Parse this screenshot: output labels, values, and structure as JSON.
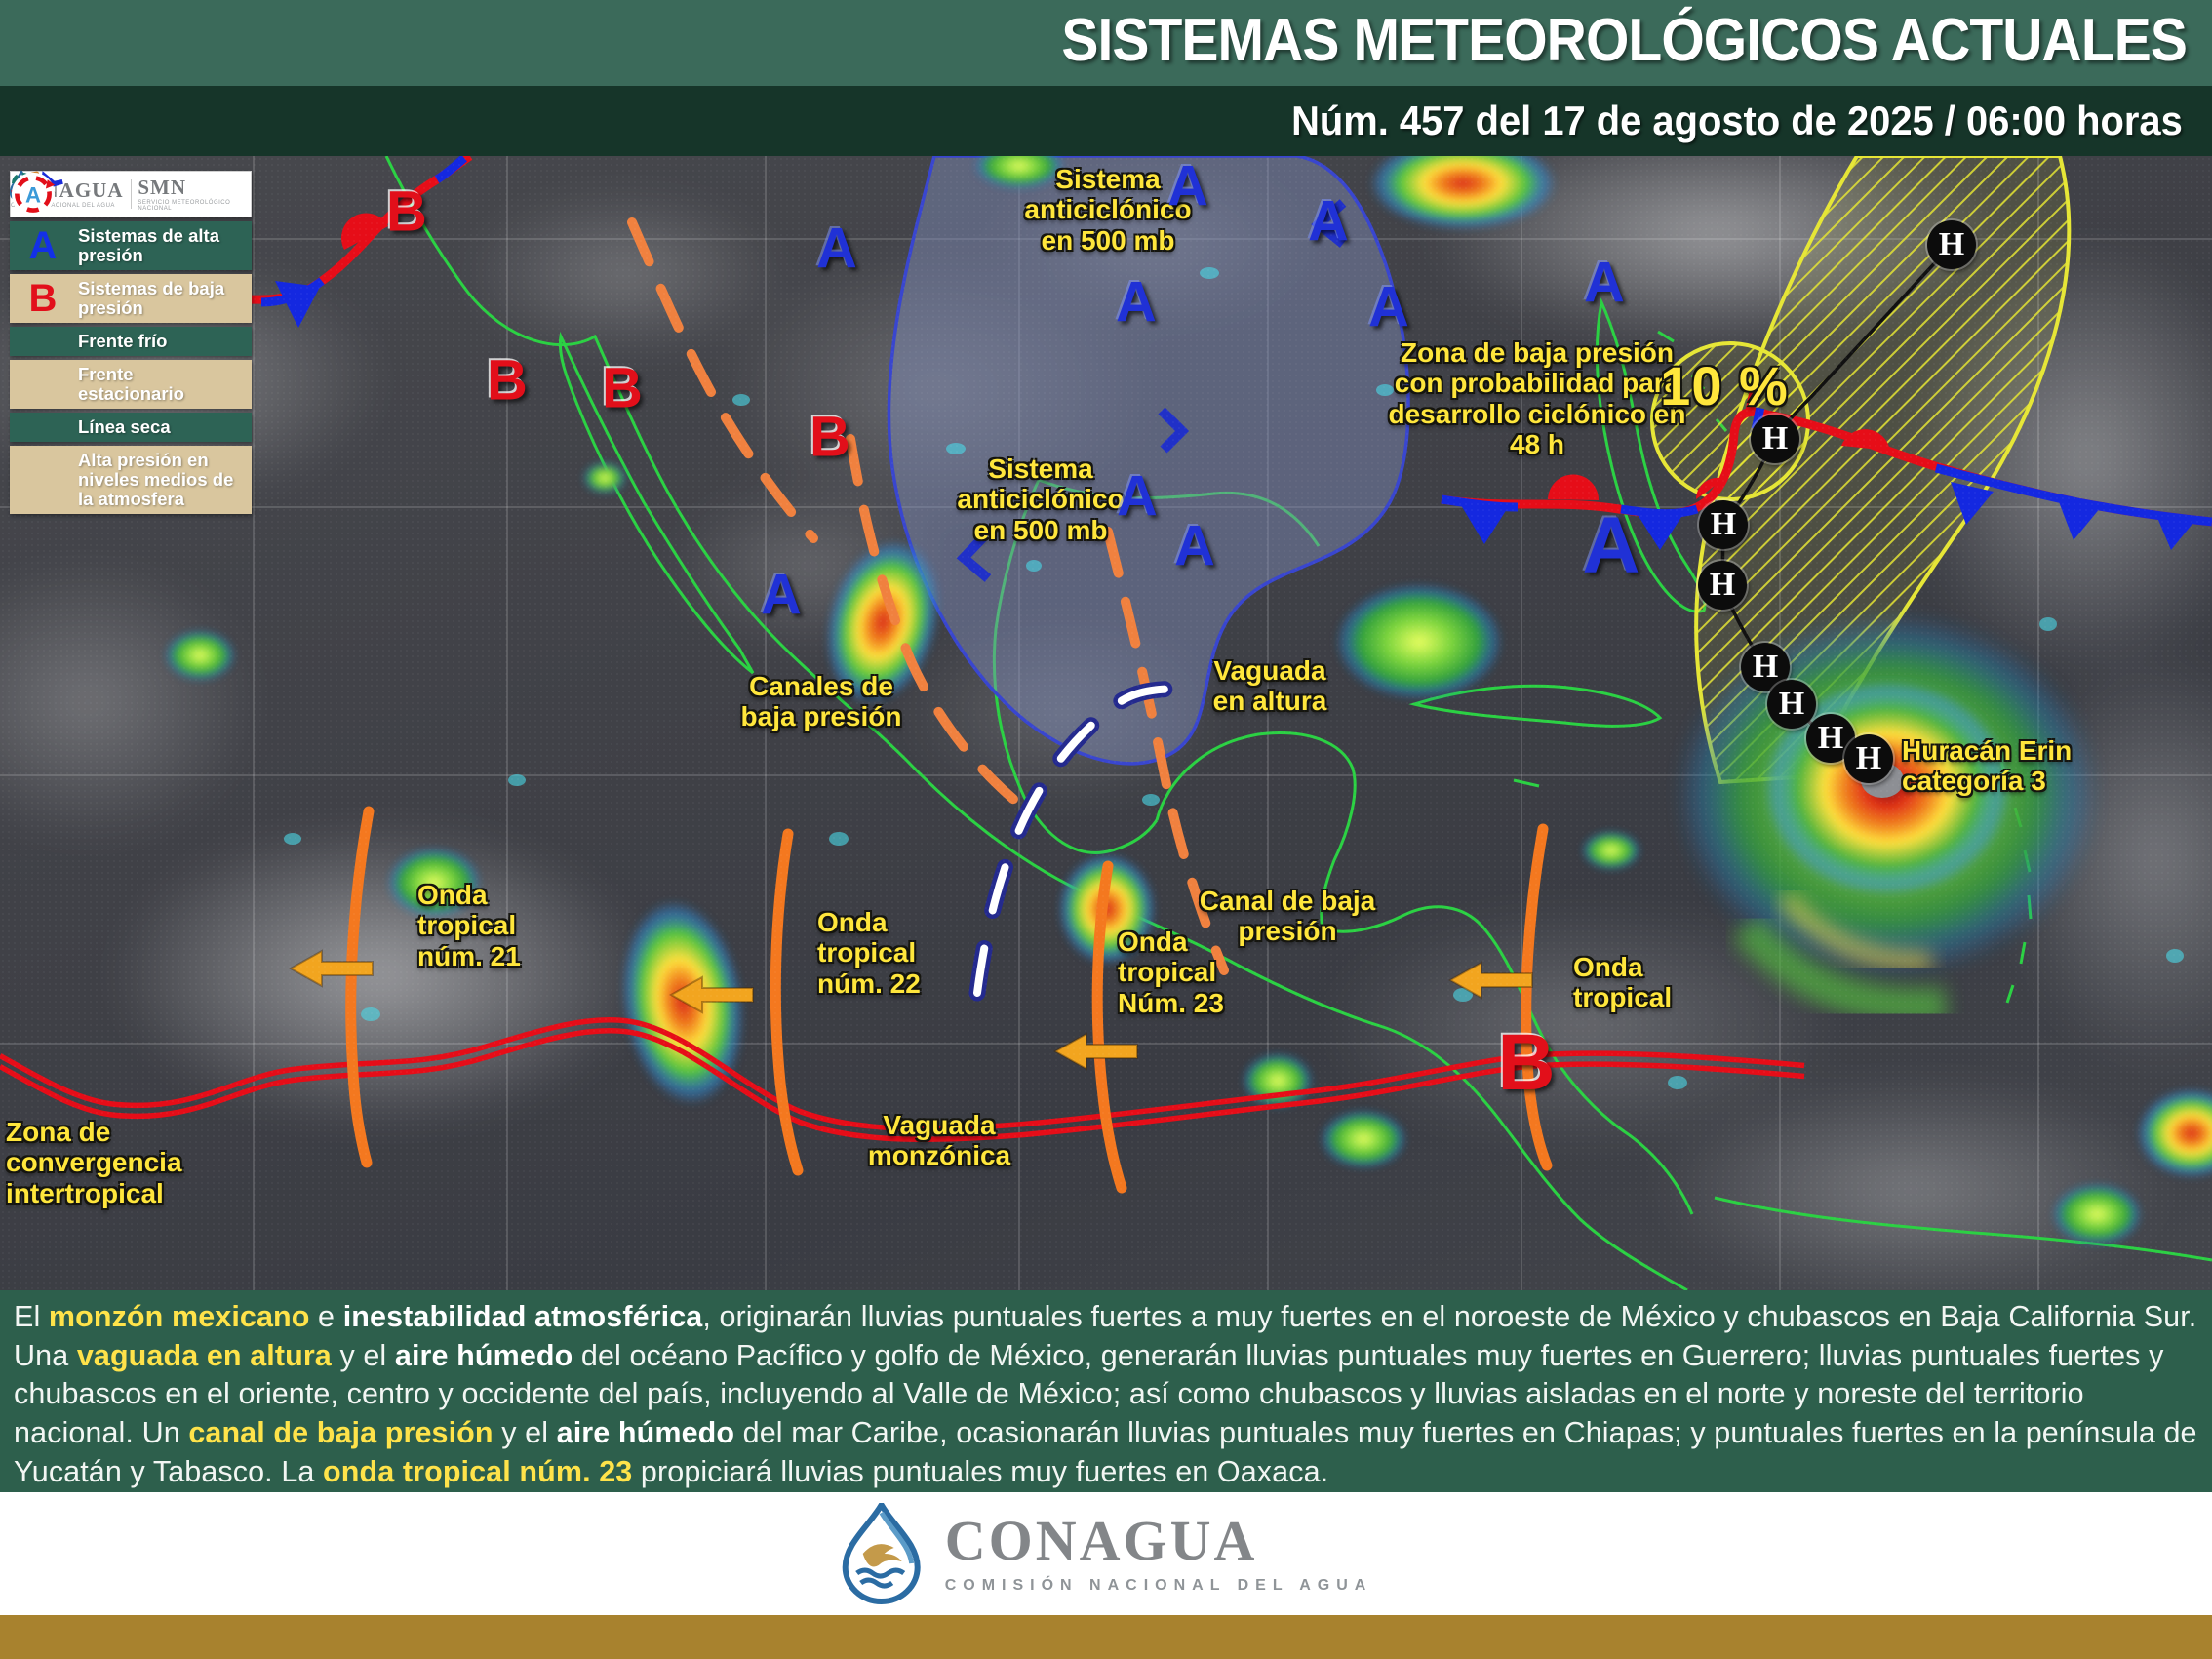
{
  "header": {
    "title": "SISTEMAS METEOROLÓGICOS ACTUALES",
    "subtitle": "Núm. 457 del 17 de agosto de 2025 / 06:00 horas"
  },
  "legend": {
    "conagua": "CONAGUA",
    "conagua_sub": "COMISIÓN NACIONAL DEL AGUA",
    "smn": "SMN",
    "smn_sub": "SERVICIO METEOROLÓGICO NACIONAL",
    "items": [
      {
        "symbol": "A",
        "label": "Sistemas de alta presión"
      },
      {
        "symbol": "B",
        "label": "Sistemas de baja presión"
      },
      {
        "symbol": "cold-front",
        "label": "Frente frío"
      },
      {
        "symbol": "stationary-front",
        "label": "Frente estacionario"
      },
      {
        "symbol": "dry-line",
        "label": "Línea seca"
      },
      {
        "symbol": "mid-level-high",
        "label": "Alta presión en niveles medios de la atmosfera"
      }
    ]
  },
  "map": {
    "symbols": {
      "high": "A",
      "low": "B",
      "track_point": "H"
    },
    "probability": "10 %",
    "labels": {
      "anticyclone_1": "Sistema\nanticiclónico\nen 500 mb",
      "anticyclone_2": "Sistema\nanticiclónico\nen 500 mb",
      "low_dev_zone": "Zona de baja presión\ncon probabilidad para\ndesarrollo ciclónico en\n48 h",
      "low_channels": "Canales de\nbaja presión",
      "upper_trough": "Vaguada\nen altura",
      "low_channel": "Canal de baja\npresión",
      "tropical_wave_21": "Onda\ntropical\nnúm. 21",
      "tropical_wave_22": "Onda\ntropical\nnúm. 22",
      "tropical_wave_23": "Onda\ntropical\nNúm. 23",
      "tropical_wave_east": "Onda\ntropical",
      "hurricane": "Huracán Erin\ncategoría 3",
      "itcz": "Zona de\nconvergencia\nintertropical",
      "monsoon_trough": "Vaguada\nmonzónica"
    }
  },
  "summary": {
    "segments": [
      {
        "t": "El "
      },
      {
        "t": "monzón mexicano",
        "s": "y"
      },
      {
        "t": " e "
      },
      {
        "t": "inestabilidad atmosférica",
        "s": "w"
      },
      {
        "t": ", originarán lluvias puntuales fuertes a muy fuertes en el noroeste de México y chubascos en Baja California Sur. Una "
      },
      {
        "t": "vaguada en altura",
        "s": "y"
      },
      {
        "t": " y el "
      },
      {
        "t": "aire húmedo",
        "s": "w"
      },
      {
        "t": " del océano Pacífico y golfo de México, generarán lluvias puntuales muy fuertes en Guerrero; lluvias puntuales fuertes y chubascos en el oriente, centro y occidente del país, incluyendo al Valle de México; así como chubascos y lluvias aisladas en el norte y noreste del territorio nacional. Un "
      },
      {
        "t": "canal de baja presión",
        "s": "y"
      },
      {
        "t": " y el "
      },
      {
        "t": "aire húmedo",
        "s": "w"
      },
      {
        "t": " del mar Caribe, ocasionarán lluvias puntuales muy fuertes en Chiapas; y puntuales fuertes en la península de Yucatán y Tabasco. La "
      },
      {
        "t": "onda tropical núm. 23",
        "s": "y"
      },
      {
        "t": " propiciará lluvias puntuales muy fuertes en Oaxaca."
      }
    ]
  },
  "footer": {
    "brand": "CONAGUA",
    "tagline": "COMISIÓN NACIONAL DEL AGUA"
  }
}
